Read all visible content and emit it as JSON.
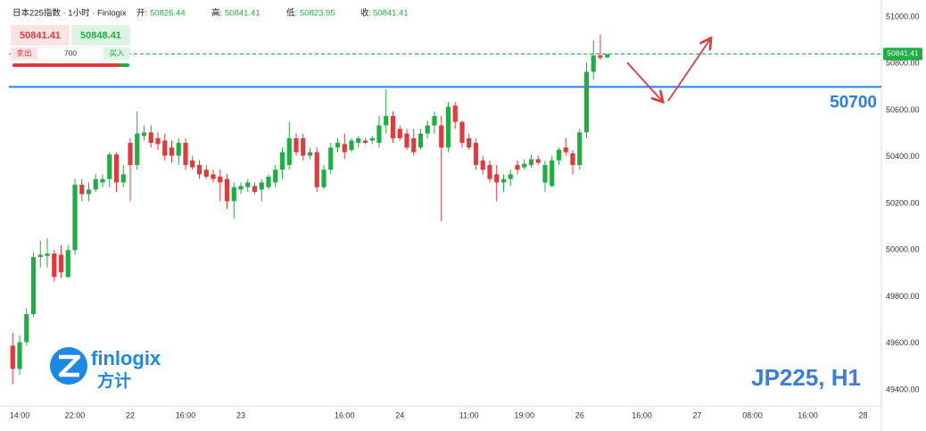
{
  "header": {
    "symbol": "日本225指数 · 1小时 · Finlogix",
    "open_label": "开:",
    "open": 50826.44,
    "high_label": "高:",
    "high": 50841.41,
    "low_label": "低:",
    "low": 50823.95,
    "close_label": "收:",
    "close": 50841.41
  },
  "trade_panel": {
    "sell_price": 50841.41,
    "buy_price": 50848.41,
    "sell_label": "卖出",
    "quantity": 700,
    "buy_label": "买入"
  },
  "watermark": {
    "brand": "finlogix",
    "brand_cn": "方计",
    "symbol": "JP225, H1"
  },
  "chart_data": {
    "type": "candlestick",
    "up_color": "#1fae43",
    "down_color": "#e0393e",
    "x": [
      -1,
      0,
      1,
      2,
      3,
      4,
      5,
      6,
      7,
      8,
      9,
      10,
      11,
      12,
      13,
      14,
      15,
      16,
      17,
      18,
      19,
      20,
      21,
      22,
      23,
      24,
      25,
      26,
      27,
      28,
      29,
      30,
      31,
      32,
      33,
      34,
      35,
      36,
      37,
      38,
      39,
      40,
      41,
      42,
      43,
      44,
      45,
      46,
      47,
      48,
      49,
      50,
      51,
      52,
      53,
      54,
      55,
      56,
      57,
      58,
      59,
      60,
      61,
      62,
      63,
      64,
      65,
      66,
      67,
      68,
      69,
      70,
      71,
      72,
      73,
      74,
      75,
      76,
      77,
      78,
      79,
      80,
      81,
      82,
      83,
      84,
      85
    ],
    "open": [
      49590,
      49490,
      49605,
      49725,
      49970,
      49975,
      49985,
      49980,
      49885,
      50000,
      50280,
      50240,
      50260,
      50290,
      50305,
      50410,
      50290,
      50460,
      50365,
      50490,
      50505,
      50480,
      50470,
      50440,
      50405,
      50460,
      50385,
      50365,
      50345,
      50325,
      50315,
      50305,
      50210,
      50260,
      50270,
      50275,
      50260,
      50270,
      50290,
      50345,
      50365,
      50480,
      50480,
      50405,
      50420,
      50270,
      50345,
      50440,
      50455,
      50430,
      50460,
      50470,
      50470,
      50460,
      50535,
      50575,
      50520,
      50500,
      50480,
      50440,
      50500,
      50535,
      50535,
      50440,
      50620,
      50550,
      50480,
      50460,
      50385,
      50365,
      50325,
      50290,
      50305,
      50365,
      50355,
      50365,
      50390,
      50290,
      50275,
      50385,
      50440,
      50415,
      50365,
      50505,
      50765,
      50835,
      50826.44
    ],
    "high": [
      49645,
      49635,
      49750,
      49990,
      50040,
      50050,
      50000,
      50020,
      50020,
      50305,
      50305,
      50290,
      50325,
      50325,
      50420,
      50420,
      50365,
      50480,
      50595,
      50535,
      50535,
      50505,
      50500,
      50470,
      50480,
      50480,
      50405,
      50385,
      50365,
      50345,
      50345,
      50325,
      50290,
      50290,
      50305,
      50290,
      50305,
      50325,
      50365,
      50440,
      50550,
      50500,
      50500,
      50440,
      50440,
      50365,
      50460,
      50480,
      50500,
      50480,
      50490,
      50480,
      50490,
      50575,
      50690,
      50595,
      50535,
      50520,
      50520,
      50520,
      50555,
      50595,
      50575,
      50635,
      50635,
      50555,
      50500,
      50480,
      50405,
      50385,
      50365,
      50325,
      50345,
      50385,
      50390,
      50410,
      50405,
      50385,
      50405,
      50440,
      50480,
      50430,
      50520,
      50805,
      50900,
      50925,
      50841.41
    ],
    "low": [
      49425,
      49465,
      49590,
      49715,
      49925,
      49925,
      49865,
      49880,
      49880,
      49980,
      50210,
      50210,
      50250,
      50270,
      50270,
      50250,
      50270,
      50210,
      50345,
      50470,
      50440,
      50430,
      50385,
      50375,
      50365,
      50345,
      50345,
      50305,
      50305,
      50290,
      50210,
      50175,
      50135,
      50240,
      50250,
      50240,
      50210,
      50260,
      50270,
      50305,
      50345,
      50405,
      50385,
      50390,
      50250,
      50260,
      50325,
      50420,
      50390,
      50420,
      50440,
      50455,
      50455,
      50440,
      50500,
      50460,
      50470,
      50430,
      50405,
      50430,
      50480,
      50500,
      50125,
      50420,
      50520,
      50440,
      50430,
      50345,
      50325,
      50290,
      50210,
      50250,
      50275,
      50325,
      50345,
      50355,
      50365,
      50250,
      50270,
      50365,
      50405,
      50325,
      50345,
      50480,
      50730,
      50815,
      50823.95
    ],
    "close": [
      49490,
      49605,
      49725,
      49970,
      49980,
      49985,
      49885,
      49905,
      50000,
      50280,
      50240,
      50260,
      50305,
      50305,
      50410,
      50290,
      50325,
      50365,
      50500,
      50505,
      50460,
      50455,
      50405,
      50405,
      50460,
      50365,
      50355,
      50325,
      50315,
      50305,
      50290,
      50210,
      50270,
      50275,
      50290,
      50250,
      50290,
      50315,
      50345,
      50420,
      50480,
      50420,
      50405,
      50420,
      50270,
      50345,
      50440,
      50460,
      50420,
      50470,
      50480,
      50460,
      50480,
      50535,
      50575,
      50480,
      50480,
      50440,
      50420,
      50500,
      50535,
      50575,
      50440,
      50615,
      50550,
      50460,
      50440,
      50365,
      50345,
      50305,
      50290,
      50305,
      50325,
      50345,
      50370,
      50390,
      50375,
      50365,
      50385,
      50430,
      50420,
      50365,
      50505,
      50765,
      50835,
      50825,
      50841.41
    ],
    "xlim": [
      -1.55,
      124.65
    ],
    "xticks": [
      {
        "value": 0,
        "label": "14:00"
      },
      {
        "value": 8,
        "label": "22:00"
      },
      {
        "value": 16,
        "label": "22"
      },
      {
        "value": 24,
        "label": "16:00"
      },
      {
        "value": 32,
        "label": "23"
      },
      {
        "value": 47,
        "label": "16:00"
      },
      {
        "value": 55,
        "label": "24"
      },
      {
        "value": 65,
        "label": "11:00"
      },
      {
        "value": 73,
        "label": "19:00"
      },
      {
        "value": 81,
        "label": "26"
      },
      {
        "value": 90,
        "label": "16:00"
      },
      {
        "value": 98,
        "label": "27"
      },
      {
        "value": 106,
        "label": "08:00"
      },
      {
        "value": 114,
        "label": "16:00"
      },
      {
        "value": 122,
        "label": "28"
      }
    ],
    "ylim": [
      49331,
      51073
    ],
    "yticks": [
      {
        "value": 51000,
        "label": "51000.00"
      },
      {
        "value": 50800,
        "label": "50800.00"
      },
      {
        "value": 50600,
        "label": "50600.00"
      },
      {
        "value": 50400,
        "label": "50400.00"
      },
      {
        "value": 50200,
        "label": "50200.00"
      },
      {
        "value": 50000,
        "label": "50000.00"
      },
      {
        "value": 49800,
        "label": "49800.00"
      },
      {
        "value": 49600,
        "label": "49600.00"
      },
      {
        "value": 49400,
        "label": "49400.00"
      }
    ],
    "level_line": {
      "value": 50700,
      "label": "50700",
      "color": "#2a7de1"
    },
    "last_price": 50841.41
  }
}
